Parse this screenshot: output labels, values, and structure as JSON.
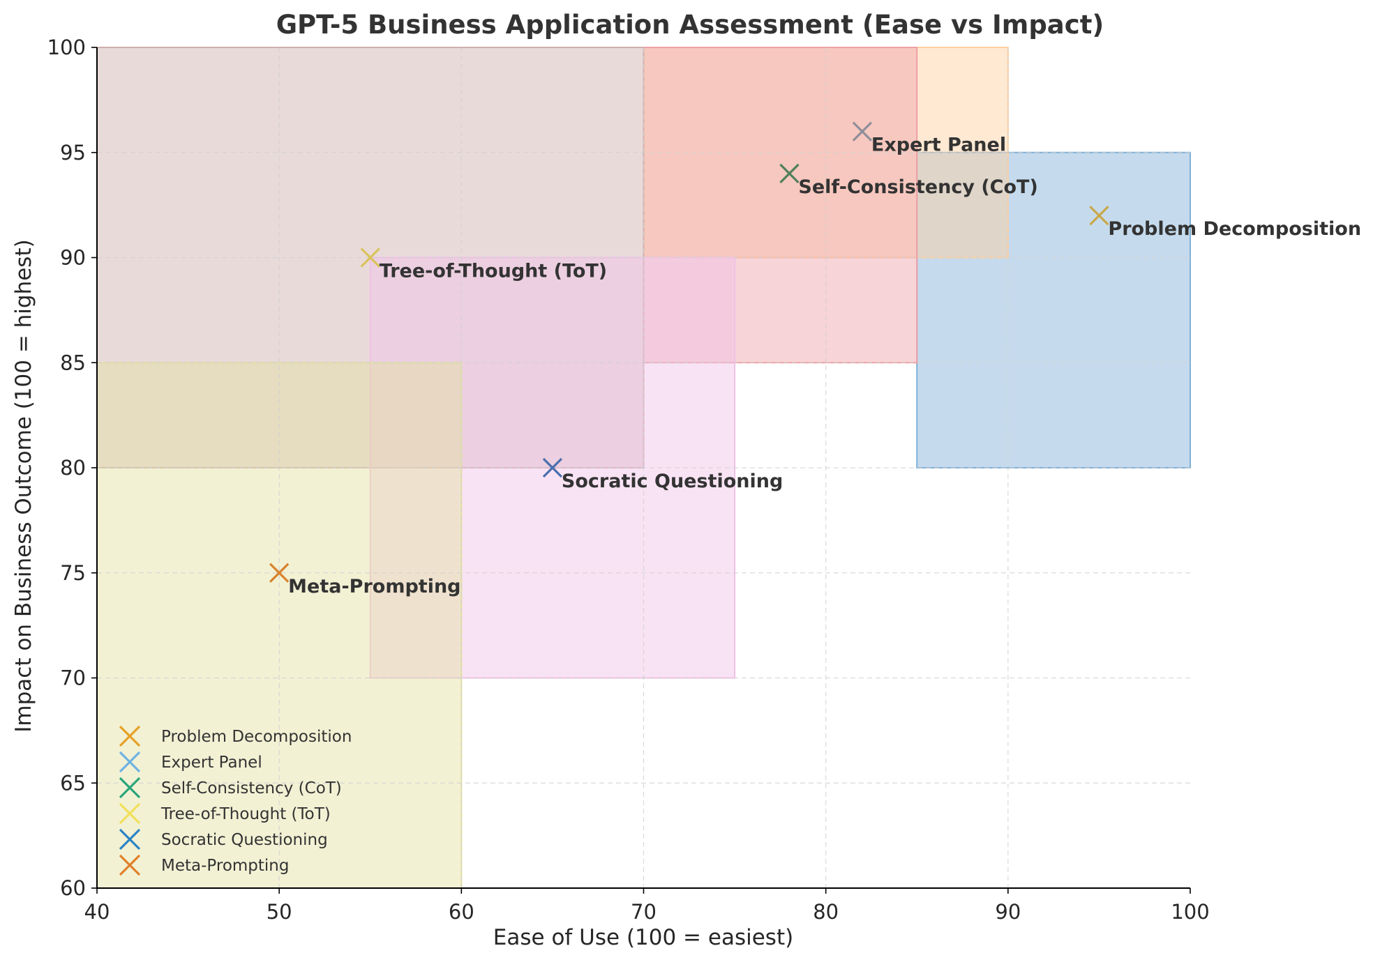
{
  "chart_data": {
    "type": "scatter",
    "title": "GPT-5 Business Application Assessment (Ease vs Impact)",
    "xlabel": "Ease of Use (100 = easiest)",
    "ylabel": "Impact on Business Outcome (100 = highest)",
    "xlim": [
      40,
      100
    ],
    "ylim": [
      60,
      100
    ],
    "xticks": [
      40,
      50,
      60,
      70,
      80,
      90,
      100
    ],
    "yticks": [
      60,
      65,
      70,
      75,
      80,
      85,
      90,
      95,
      100
    ],
    "grid": true,
    "legend_position": "lower-left",
    "series": [
      {
        "name": "Problem Decomposition",
        "x": 95,
        "y": 92,
        "marker_color": "#c9a84b",
        "legend_color": "#e6a126",
        "region": {
          "x": [
            85,
            100
          ],
          "y": [
            80,
            95
          ]
        },
        "region_color": "#7fb0d6"
      },
      {
        "name": "Expert Panel",
        "x": 82,
        "y": 96,
        "marker_color": "#8e8e99",
        "legend_color": "#6fb2e3",
        "region": {
          "x": [
            70,
            90
          ],
          "y": [
            90,
            100
          ]
        },
        "region_color": "#ffcf9e"
      },
      {
        "name": "Self-Consistency (CoT)",
        "x": 78,
        "y": 94,
        "marker_color": "#4f7f5a",
        "legend_color": "#2aa57a",
        "region": {
          "x": [
            70,
            85
          ],
          "y": [
            85,
            100
          ]
        },
        "region_color": "#eea0a6"
      },
      {
        "name": "Tree-of-Thought (ToT)",
        "x": 55,
        "y": 90,
        "marker_color": "#d9c35a",
        "legend_color": "#f2df5a",
        "region": {
          "x": [
            40,
            70
          ],
          "y": [
            80,
            100
          ]
        },
        "region_color": "#cfaeae"
      },
      {
        "name": "Socratic Questioning",
        "x": 65,
        "y": 80,
        "marker_color": "#4a6fae",
        "legend_color": "#2a84c4",
        "region": {
          "x": [
            55,
            75
          ],
          "y": [
            70,
            90
          ]
        },
        "region_color": "#f0c0e6"
      },
      {
        "name": "Meta-Prompting",
        "x": 50,
        "y": 75,
        "marker_color": "#d9822b",
        "legend_color": "#e0802a",
        "region": {
          "x": [
            40,
            60
          ],
          "y": [
            60,
            85
          ]
        },
        "region_color": "#e2e0a0"
      }
    ]
  }
}
